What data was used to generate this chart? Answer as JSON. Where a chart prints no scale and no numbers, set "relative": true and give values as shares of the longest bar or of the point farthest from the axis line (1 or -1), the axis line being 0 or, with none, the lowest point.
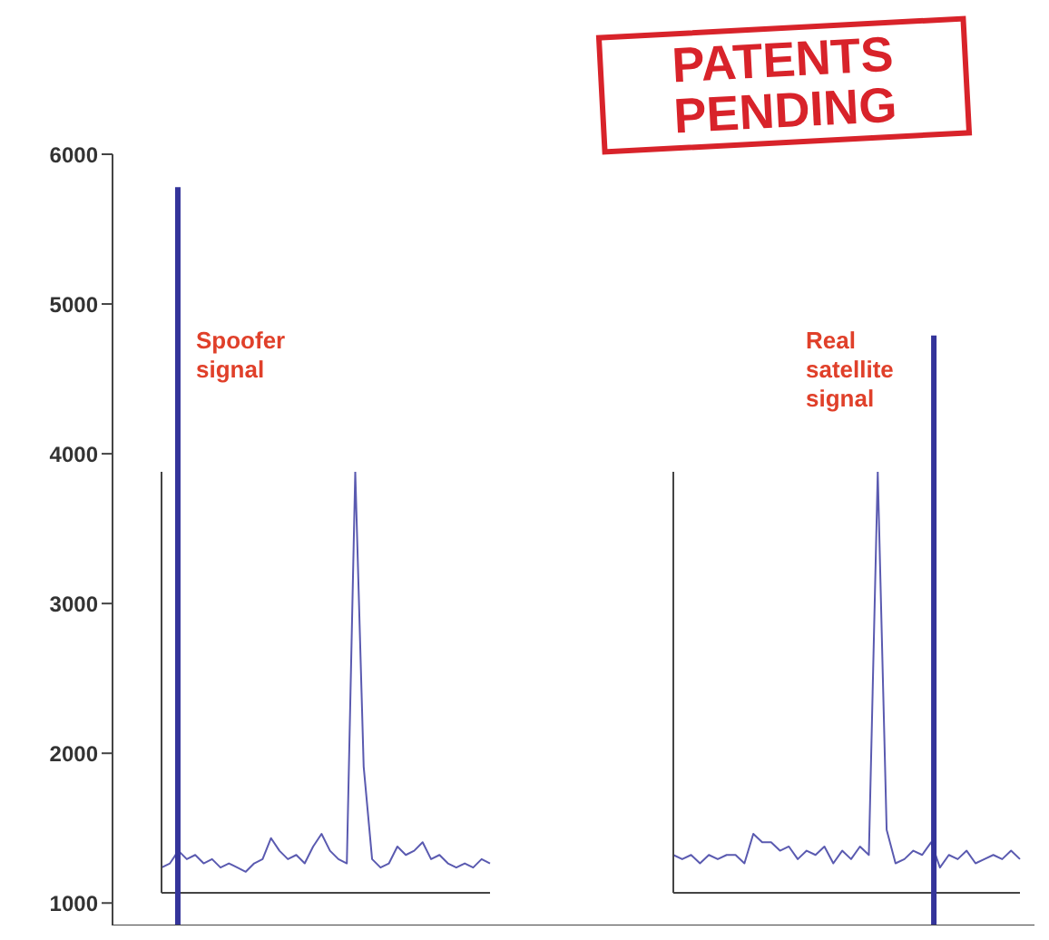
{
  "chart_data": [
    {
      "type": "bar",
      "categories": [
        null,
        null,
        null,
        null,
        null,
        null,
        null,
        null,
        null,
        null,
        null,
        null,
        null,
        null,
        null,
        null,
        null,
        null,
        null,
        null,
        null,
        null,
        null,
        null,
        null,
        null,
        null,
        null,
        null,
        null,
        null,
        null,
        null,
        null,
        null,
        null,
        null,
        null,
        null,
        null,
        null,
        null,
        null,
        null,
        null,
        null,
        null,
        null,
        null,
        null
      ],
      "series": [
        {
          "color": "#34349a",
          "values": [
            null,
            null,
            null,
            5780,
            null,
            null,
            null,
            null,
            null,
            null,
            null,
            null,
            null,
            null,
            null,
            null,
            null,
            null,
            null,
            null,
            null,
            null,
            null,
            null,
            null,
            null,
            null,
            null,
            null,
            null,
            null,
            null,
            null,
            null,
            null,
            null,
            null,
            null,
            null,
            null,
            null,
            null,
            null,
            null,
            4790,
            null,
            null,
            null,
            null,
            null
          ]
        }
      ],
      "ylim": [
        850,
        6000
      ],
      "yticks": [
        1000,
        2000,
        3000,
        4000,
        5000,
        6000
      ],
      "grid": false,
      "legend": false,
      "annotations": [
        "PATENTS PENDING",
        "Spoofer signal",
        "Real satellite signal"
      ]
    },
    {
      "type": "line",
      "relative": true,
      "categories": [
        null,
        null,
        null,
        null,
        null,
        null,
        null,
        null,
        null,
        null,
        null,
        null,
        null,
        null,
        null,
        null,
        null,
        null,
        null,
        null,
        null,
        null,
        null,
        null,
        null,
        null,
        null,
        null,
        null,
        null,
        null,
        null,
        null,
        null,
        null,
        null,
        null,
        null,
        null,
        null
      ],
      "series": [
        {
          "color": "#5a5ab0",
          "values": [
            0.06,
            0.07,
            0.1,
            0.08,
            0.09,
            0.07,
            0.08,
            0.06,
            0.07,
            0.06,
            0.05,
            0.07,
            0.08,
            0.13,
            0.1,
            0.08,
            0.09,
            0.07,
            0.11,
            0.14,
            0.1,
            0.08,
            0.07,
            1.0,
            0.3,
            0.08,
            0.06,
            0.07,
            0.11,
            0.09,
            0.1,
            0.12,
            0.08,
            0.09,
            0.07,
            0.06,
            0.07,
            0.06,
            0.08,
            0.07
          ]
        }
      ],
      "grid": false,
      "legend": false
    },
    {
      "type": "line",
      "relative": true,
      "categories": [
        null,
        null,
        null,
        null,
        null,
        null,
        null,
        null,
        null,
        null,
        null,
        null,
        null,
        null,
        null,
        null,
        null,
        null,
        null,
        null,
        null,
        null,
        null,
        null,
        null,
        null,
        null,
        null,
        null,
        null,
        null,
        null,
        null,
        null,
        null,
        null,
        null,
        null,
        null,
        null
      ],
      "series": [
        {
          "color": "#5a5ab0",
          "values": [
            0.09,
            0.08,
            0.09,
            0.07,
            0.09,
            0.08,
            0.09,
            0.09,
            0.07,
            0.14,
            0.12,
            0.12,
            0.1,
            0.11,
            0.08,
            0.1,
            0.09,
            0.11,
            0.07,
            0.1,
            0.08,
            0.11,
            0.09,
            1.0,
            0.15,
            0.07,
            0.08,
            0.1,
            0.09,
            0.12,
            0.06,
            0.09,
            0.08,
            0.1,
            0.07,
            0.08,
            0.09,
            0.08,
            0.1,
            0.08
          ]
        }
      ],
      "grid": false,
      "legend": false
    }
  ]
}
